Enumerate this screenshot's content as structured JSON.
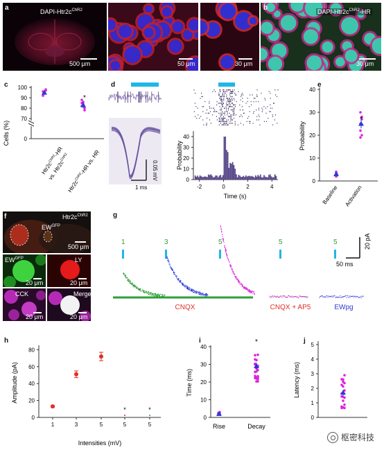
{
  "panel_labels": [
    "a",
    "b",
    "c",
    "d",
    "e",
    "f",
    "g",
    "h",
    "i",
    "j"
  ],
  "panel_a": {
    "title": "DAPI-Htr2c",
    "title_sup": "ChR2",
    "scales": [
      "500 μm",
      "50 μm",
      "30 μm"
    ]
  },
  "panel_b": {
    "title_pre": "DAPI-Htr2c",
    "title_sup": "ChR2",
    "title_post": "-HR",
    "scale": "30 μm"
  },
  "panel_c": {
    "ylabel": "Cells (%)",
    "yticks": [
      "100",
      "90",
      "80",
      "70",
      "0"
    ],
    "xticks": [
      {
        "line1_pre": "Htr2c",
        "line1_sup": "ChR2",
        "line1_post": "-HR",
        "line2_pre": "vs. Htr2c",
        "line2_sup": "ChR2"
      },
      {
        "line1_pre": "Htr2c",
        "line1_sup": "ChR2",
        "line1_post": "-HR vs. HR",
        "line2_pre": "",
        "line2_sup": ""
      }
    ],
    "star": "*"
  },
  "panel_d": {
    "ylabel": "Probability",
    "xlabel": "Time (s)",
    "xticks": [
      "-2",
      "0",
      "2",
      "4"
    ],
    "yticks": [
      "0",
      "10",
      "20",
      "30",
      "40"
    ],
    "scale_v": "0.05 mV",
    "scale_t": "1 ms"
  },
  "panel_e": {
    "ylabel": "Probability",
    "yticks": [
      "0",
      "10",
      "20",
      "30",
      "40"
    ],
    "xticks": [
      "Baseline",
      "Activation"
    ],
    "star": "*"
  },
  "panel_f": {
    "title": "Htr2c",
    "title_sup": "ChR2",
    "ew_label": "EW",
    "ew_sup": "GFP",
    "scale_main": "500 μm",
    "tiles": [
      {
        "label": "EW",
        "sup": "GFP",
        "scale": "20 μm"
      },
      {
        "label": "LY",
        "sup": "",
        "scale": "20 μm"
      },
      {
        "label": "CCK",
        "sup": "",
        "scale": "20 μm"
      },
      {
        "label": "Merge",
        "sup": "",
        "scale": "20 μm"
      }
    ]
  },
  "panel_g": {
    "stim_labels": [
      "1",
      "3",
      "5",
      "5",
      "5"
    ],
    "condition_labels": [
      "CNQX",
      "CNQX + AP5",
      "EWpg"
    ],
    "scale_i": "20 pA",
    "scale_t": "50 ms"
  },
  "chart_data": [
    {
      "type": "scatter",
      "panel": "h",
      "title": "",
      "xlabel": "Intensities (mV)",
      "ylabel": "Amplitude (pA)",
      "categories": [
        "1",
        "3",
        "5",
        "5",
        "5"
      ],
      "yticks": [
        "0",
        "20",
        "40",
        "60",
        "80"
      ],
      "ylim": [
        0,
        90
      ],
      "series": [
        {
          "values": [
            13,
            51,
            72,
            0,
            0
          ]
        }
      ],
      "stars": [
        "*",
        "*"
      ],
      "colors": {
        "first": "#e0302a",
        "second": "#2e9e3a",
        "third": "#d9261c"
      }
    },
    {
      "type": "scatter",
      "panel": "i",
      "title": "",
      "xlabel": "",
      "ylabel": "Time (ms)",
      "categories": [
        "Rise",
        "Decay"
      ],
      "yticks": [
        "0",
        "10",
        "20",
        "30",
        "40"
      ],
      "ylim": [
        0,
        40
      ],
      "series": [
        {
          "values": [
            2,
            29
          ]
        }
      ],
      "star": "*",
      "colors": {
        "points": "#dd22dd",
        "mean": "#2a3bd6"
      }
    },
    {
      "type": "scatter",
      "panel": "j",
      "title": "",
      "xlabel": "",
      "ylabel": "Latency (ms)",
      "categories": [
        ""
      ],
      "yticks": [
        "0",
        "1",
        "2",
        "3",
        "4",
        "5"
      ],
      "ylim": [
        0,
        5
      ],
      "series": [
        {
          "values": [
            1.7
          ]
        }
      ],
      "colors": {
        "points": "#dd22dd",
        "mean": "#2a3bd6"
      }
    }
  ],
  "watermark": "枢密科技"
}
